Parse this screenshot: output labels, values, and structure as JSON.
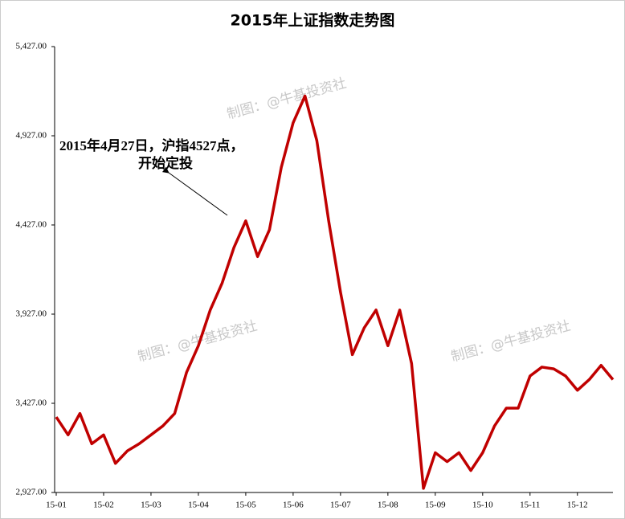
{
  "chart_data": {
    "type": "line",
    "title": "2015年上证指数走势图",
    "categories": [
      "15-01",
      null,
      null,
      null,
      "15-02",
      null,
      null,
      null,
      "15-03",
      null,
      null,
      null,
      "15-04",
      null,
      null,
      null,
      "15-05",
      null,
      null,
      null,
      "15-06",
      null,
      null,
      null,
      "15-07",
      null,
      null,
      null,
      "15-08",
      null,
      null,
      null,
      "15-09",
      null,
      null,
      null,
      "15-10",
      null,
      null,
      null,
      "15-11",
      null,
      null,
      null,
      "15-12",
      null,
      null,
      null
    ],
    "values": [
      3350,
      3250,
      3370,
      3200,
      3250,
      3090,
      3160,
      3200,
      3250,
      3300,
      3370,
      3600,
      3750,
      3950,
      4100,
      4300,
      4450,
      4250,
      4400,
      4750,
      5000,
      5150,
      4900,
      4450,
      4050,
      3700,
      3850,
      3950,
      3750,
      3950,
      3650,
      2950,
      3150,
      3100,
      3150,
      3050,
      3150,
      3300,
      3400,
      3400,
      3580,
      3630,
      3620,
      3580,
      3500,
      3560,
      3640,
      3560
    ],
    "color": "#c00000",
    "ylim": [
      2927,
      5427
    ],
    "yticks": [
      {
        "value": 2927,
        "label": "2,927.00"
      },
      {
        "value": 3427,
        "label": "3,427.00"
      },
      {
        "value": 3927,
        "label": "3,927.00"
      },
      {
        "value": 4427,
        "label": "4,427.00"
      },
      {
        "value": 4927,
        "label": "4,927.00"
      },
      {
        "value": 5427,
        "label": "5,427.00"
      }
    ],
    "grid": false,
    "annotation": [
      "2015年4月27日，沪指4527点，",
      "开始定投"
    ],
    "watermarks": [
      "制图：@牛基投资社",
      "制图：@牛基投资社",
      "制图：@牛基投资社"
    ]
  }
}
